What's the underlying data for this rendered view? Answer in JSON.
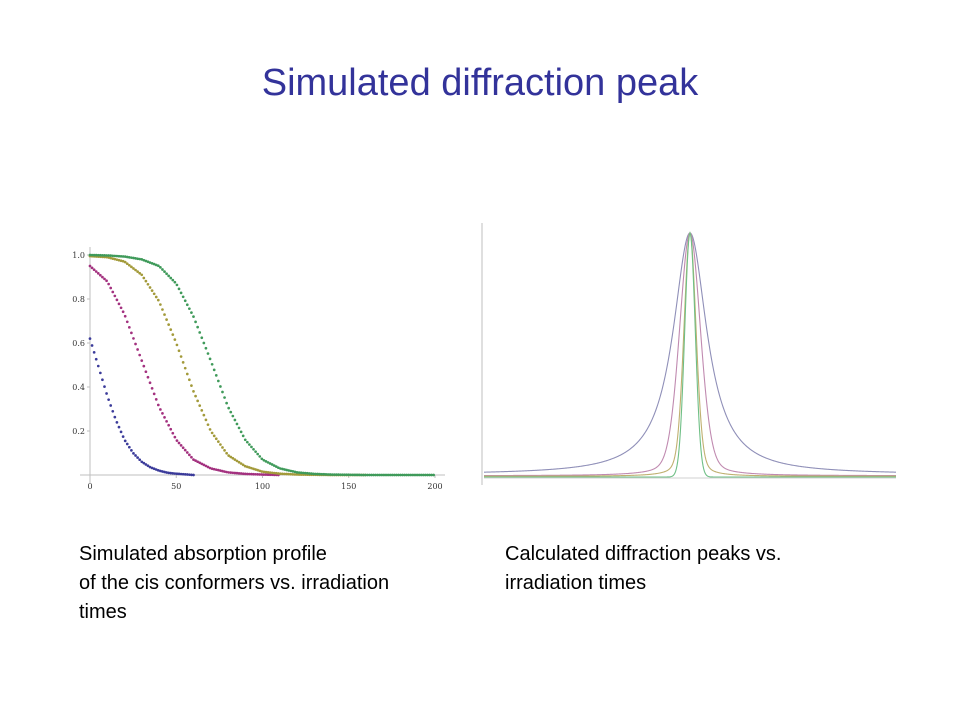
{
  "slide": {
    "title": "Simulated diffraction peak",
    "caption_left": [
      "Simulated absorption profile",
      "of the cis conformers vs. irradiation",
      "times"
    ],
    "caption_right": [
      "Calculated diffraction peaks vs.",
      "irradiation times"
    ]
  },
  "colors": {
    "title": "#33339a",
    "blue": "#3b3b9a",
    "magenta": "#a3317f",
    "olive": "#a39a3a",
    "green": "#3f9a5a",
    "peak_lavender": "#8f8fb8",
    "peak_pink": "#c08ab0",
    "peak_tan": "#c0b070",
    "peak_green": "#6fbf86"
  },
  "chart_data": [
    {
      "type": "scatter",
      "xlim": [
        0,
        200
      ],
      "ylim": [
        0,
        1.0
      ],
      "x_ticks": [
        "0",
        "50",
        "100",
        "150",
        "200"
      ],
      "y_ticks": [
        "0.2",
        "0.4",
        "0.6",
        "0.8",
        "1.0"
      ],
      "series": [
        {
          "color": "#3b3b9a",
          "x0": 0,
          "x1": 60,
          "points": [
            [
              0,
              0.62
            ],
            [
              5,
              0.49
            ],
            [
              10,
              0.36
            ],
            [
              15,
              0.25
            ],
            [
              20,
              0.16
            ],
            [
              25,
              0.1
            ],
            [
              30,
              0.06
            ],
            [
              35,
              0.035
            ],
            [
              40,
              0.02
            ],
            [
              45,
              0.01
            ],
            [
              50,
              0.006
            ],
            [
              55,
              0.003
            ],
            [
              60,
              0.0
            ]
          ]
        },
        {
          "color": "#a3317f",
          "x0": 0,
          "x1": 110,
          "points": [
            [
              0,
              0.95
            ],
            [
              10,
              0.88
            ],
            [
              20,
              0.73
            ],
            [
              30,
              0.52
            ],
            [
              40,
              0.31
            ],
            [
              50,
              0.16
            ],
            [
              60,
              0.07
            ],
            [
              70,
              0.03
            ],
            [
              80,
              0.012
            ],
            [
              90,
              0.005
            ],
            [
              100,
              0.002
            ],
            [
              110,
              0.0
            ]
          ]
        },
        {
          "color": "#a39a3a",
          "x0": 0,
          "x1": 160,
          "points": [
            [
              0,
              0.995
            ],
            [
              10,
              0.99
            ],
            [
              20,
              0.97
            ],
            [
              30,
              0.91
            ],
            [
              40,
              0.79
            ],
            [
              50,
              0.6
            ],
            [
              60,
              0.38
            ],
            [
              70,
              0.2
            ],
            [
              80,
              0.09
            ],
            [
              90,
              0.04
            ],
            [
              100,
              0.015
            ],
            [
              110,
              0.006
            ],
            [
              120,
              0.002
            ],
            [
              140,
              0.0
            ],
            [
              160,
              0.0
            ]
          ]
        },
        {
          "color": "#3f9a5a",
          "x0": 0,
          "x1": 200,
          "points": [
            [
              0,
              1.0
            ],
            [
              10,
              0.998
            ],
            [
              20,
              0.993
            ],
            [
              30,
              0.98
            ],
            [
              40,
              0.95
            ],
            [
              50,
              0.87
            ],
            [
              60,
              0.72
            ],
            [
              70,
              0.52
            ],
            [
              80,
              0.31
            ],
            [
              90,
              0.16
            ],
            [
              100,
              0.07
            ],
            [
              110,
              0.03
            ],
            [
              120,
              0.012
            ],
            [
              130,
              0.005
            ],
            [
              140,
              0.002
            ],
            [
              160,
              0.0
            ],
            [
              200,
              0.0
            ]
          ]
        }
      ]
    },
    {
      "type": "line",
      "xlim": [
        -1,
        1
      ],
      "ylim": [
        0,
        1
      ],
      "peak_x": 0,
      "series": [
        {
          "color": "#8f8fb8",
          "profile": "lorentzian",
          "halfwidth": 0.1,
          "baseline": 0.01
        },
        {
          "color": "#c08ab0",
          "profile": "pseudo-voigt",
          "halfwidth": 0.06,
          "baseline": 0.005
        },
        {
          "color": "#c0b070",
          "profile": "pseudo-voigt",
          "halfwidth": 0.035,
          "baseline": 0.003
        },
        {
          "color": "#6fbf86",
          "profile": "gaussian",
          "halfwidth": 0.03,
          "baseline": 0.0
        }
      ]
    }
  ]
}
